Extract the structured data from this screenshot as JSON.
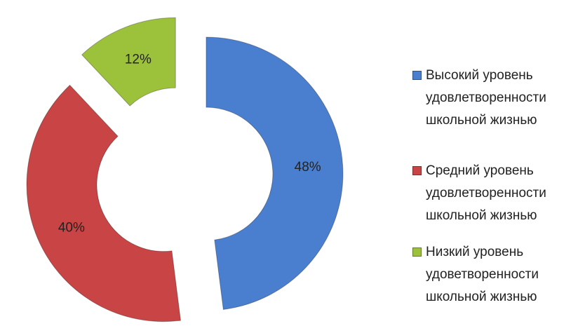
{
  "chart_data": {
    "type": "doughnut",
    "categories": [
      "Высокий уровень удовлетворенности школьной жизнью",
      "Средний уровень удовлетворенности школьной жизнью",
      "Низкий уровень удоветворенности школьной жизнью"
    ],
    "values": [
      48,
      40,
      12
    ],
    "value_labels": [
      "48%",
      "40%",
      "12%"
    ],
    "colors": [
      "#4a7fd0",
      "#c94444",
      "#9cc23c"
    ],
    "exploded": true,
    "legend": "right"
  }
}
